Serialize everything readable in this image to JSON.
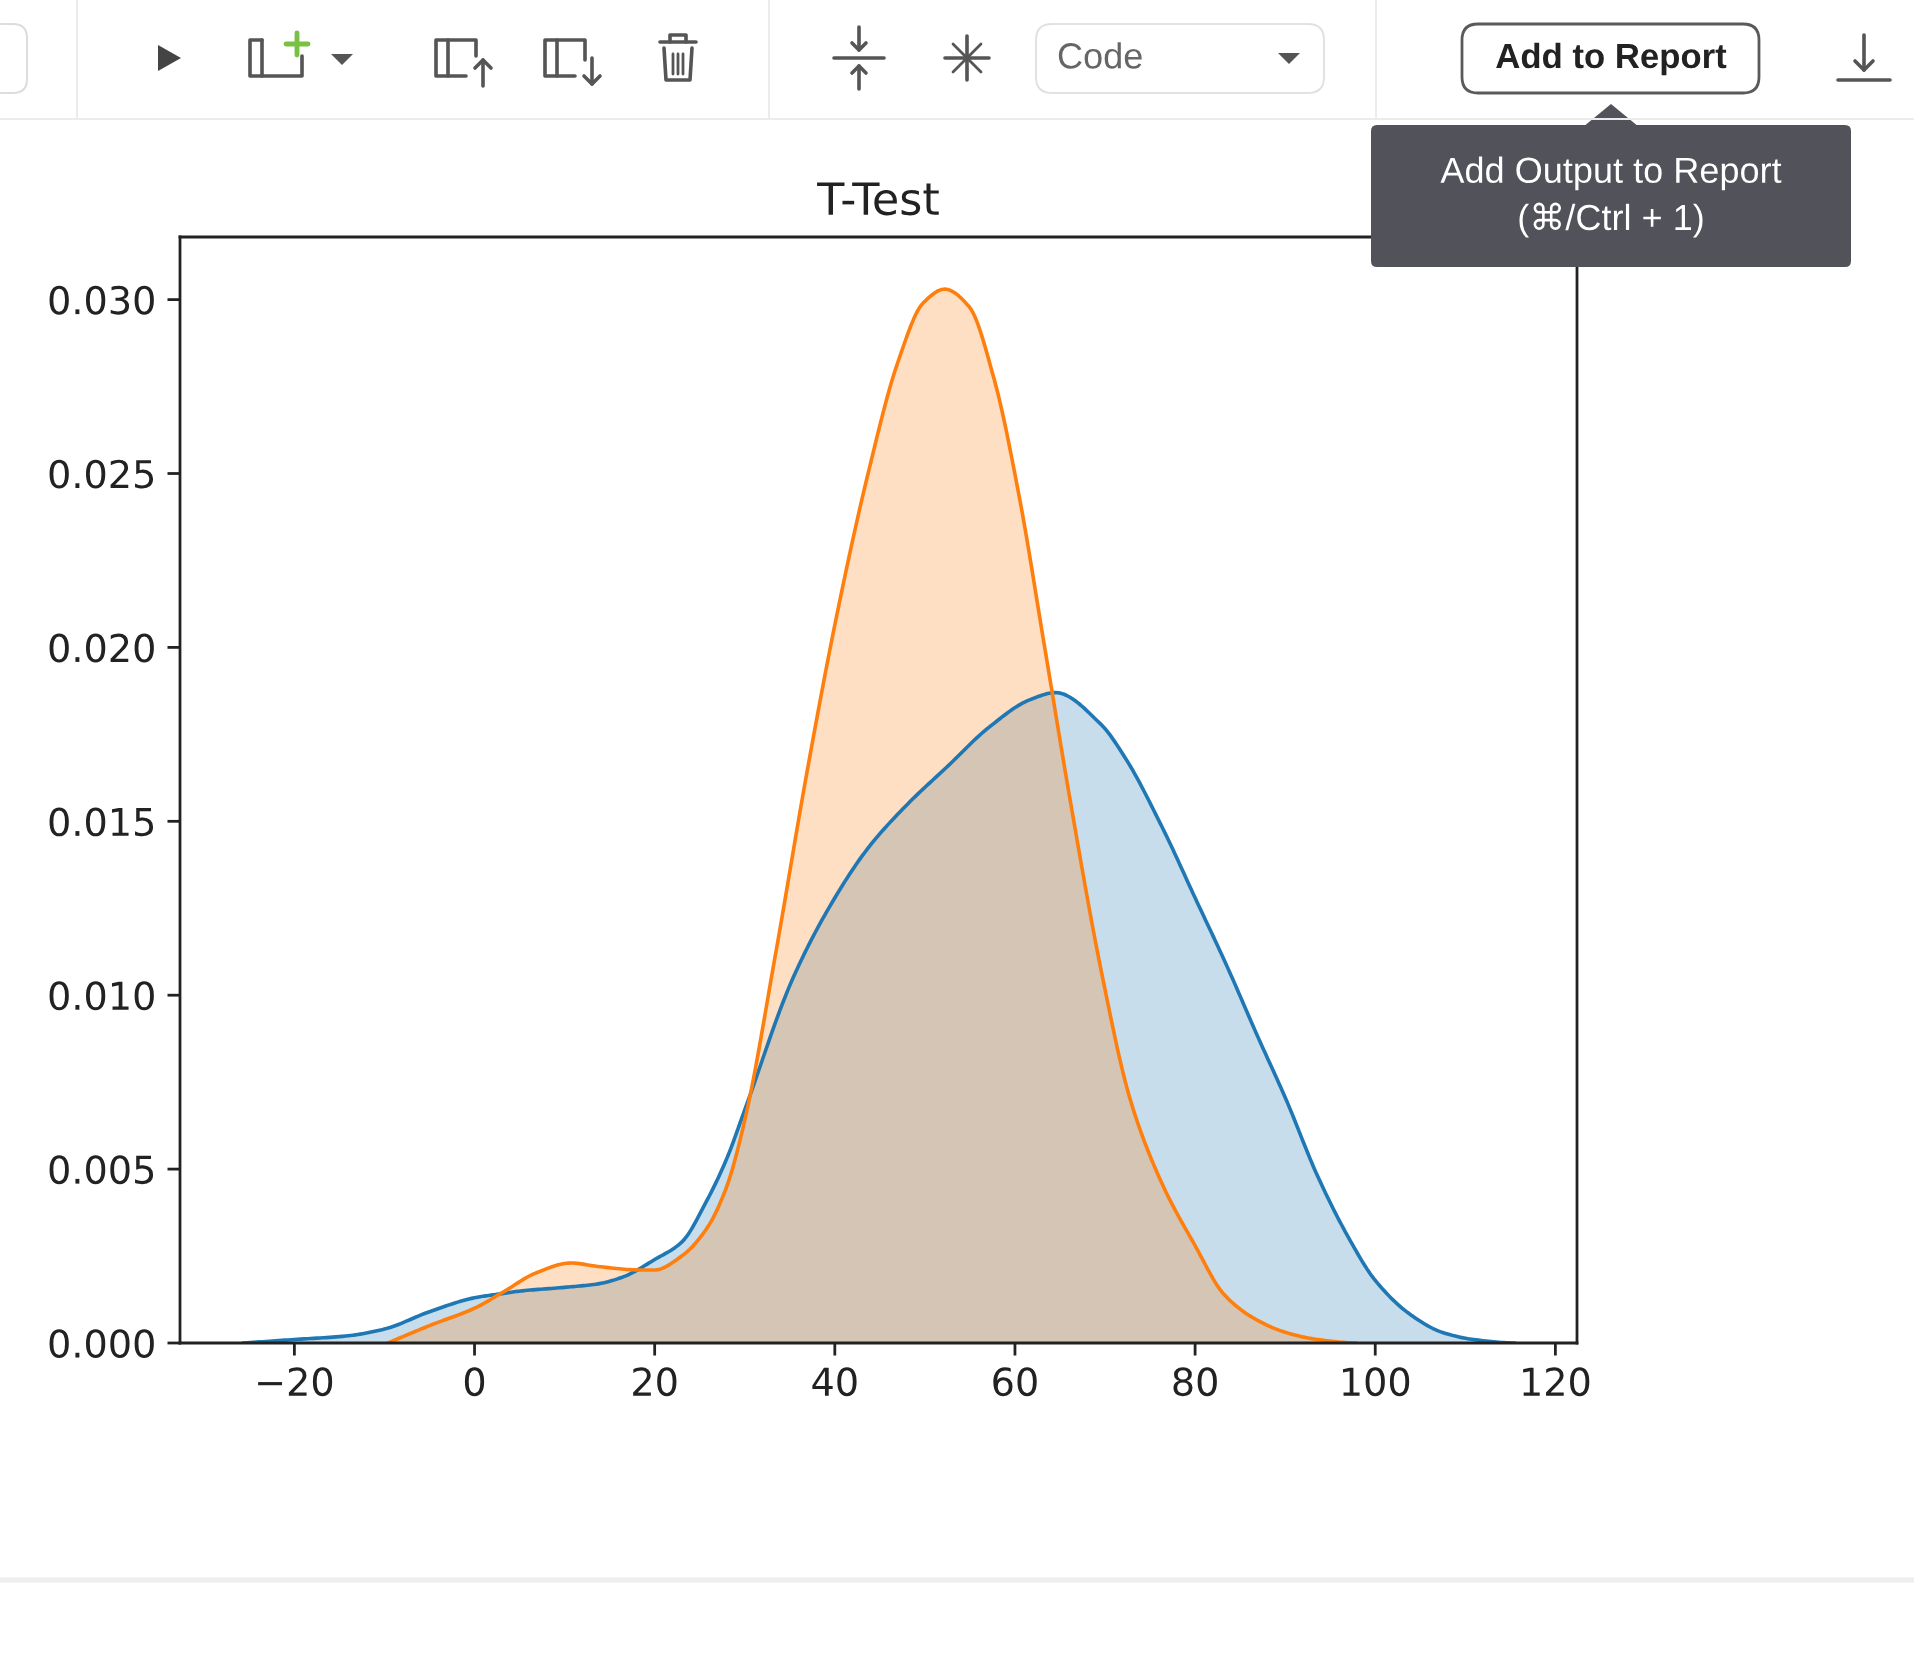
{
  "chart_data": {
    "type": "area",
    "title": "T-Test",
    "series": [
      {
        "color": "#1f77b4",
        "x": [
          -25.6,
          -20,
          -14.3,
          -10,
          -5,
          0,
          2.5,
          5.3,
          10,
          13.7,
          16.5,
          20,
          23,
          25.8,
          28,
          30,
          35.2,
          39.1,
          43.6,
          48.1,
          52.6,
          57.1,
          61.7,
          64.5,
          69.5,
          72.3,
          76.4,
          80,
          83.6,
          86.8,
          90.1,
          93.6,
          97.1,
          100,
          104,
          107.5,
          110.9,
          115.4
        ],
        "values": [
          0,
          0.0001,
          0.0002,
          0.0004,
          0.0009,
          0.0013,
          0.0014,
          0.0015,
          0.0016,
          0.0017,
          0.0019,
          0.0024,
          0.0029,
          0.0041,
          0.0053,
          0.0067,
          0.0104,
          0.0124,
          0.0142,
          0.0155,
          0.0166,
          0.0177,
          0.0185,
          0.0187,
          0.0178,
          0.0168,
          0.0148,
          0.0128,
          0.0108,
          0.0089,
          0.007,
          0.0048,
          0.003,
          0.0018,
          0.0008,
          0.0003,
          0.0001,
          0
        ]
      },
      {
        "color": "#ff7f0e",
        "x": [
          -9.6,
          -5,
          0,
          3.4,
          6.7,
          10.7,
          13.7,
          18.4,
          20,
          23,
          25.8,
          28,
          30,
          33.5,
          36.9,
          40.2,
          43.6,
          47,
          49.8,
          52.2,
          54.9,
          57.7,
          60.5,
          63.3,
          66.2,
          69.5,
          72.8,
          76.3,
          80,
          83.2,
          86.6,
          90.1,
          93.6,
          97.8
        ],
        "values": [
          0,
          0.0005,
          0.001,
          0.0015,
          0.002,
          0.0023,
          0.0022,
          0.0021,
          0.0021,
          0.0025,
          0.0033,
          0.0045,
          0.0064,
          0.0113,
          0.0164,
          0.0209,
          0.0249,
          0.0282,
          0.0299,
          0.0303,
          0.0298,
          0.0277,
          0.0243,
          0.02,
          0.0155,
          0.0108,
          0.007,
          0.0046,
          0.0028,
          0.0014,
          0.0007,
          0.0003,
          0.0001,
          0
        ]
      }
    ],
    "xlim": [
      -32.7,
      122.4
    ],
    "ylim": [
      0,
      0.0318
    ],
    "xticks": [
      {
        "value": -20,
        "label": "−20"
      },
      0,
      20,
      40,
      60,
      80,
      100,
      120
    ],
    "yticks": [
      {
        "value": 0,
        "label": "0.000"
      },
      {
        "value": 0.005,
        "label": "0.005"
      },
      {
        "value": 0.01,
        "label": "0.010"
      },
      {
        "value": 0.015,
        "label": "0.015"
      },
      {
        "value": 0.02,
        "label": "0.020"
      },
      {
        "value": 0.025,
        "label": "0.025"
      },
      {
        "value": 0.03,
        "label": "0.030"
      }
    ],
    "annotations": [
      "Code",
      "Add to Report",
      "Add Output to Report\n(⌘/Ctrl + 1)"
    ]
  }
}
